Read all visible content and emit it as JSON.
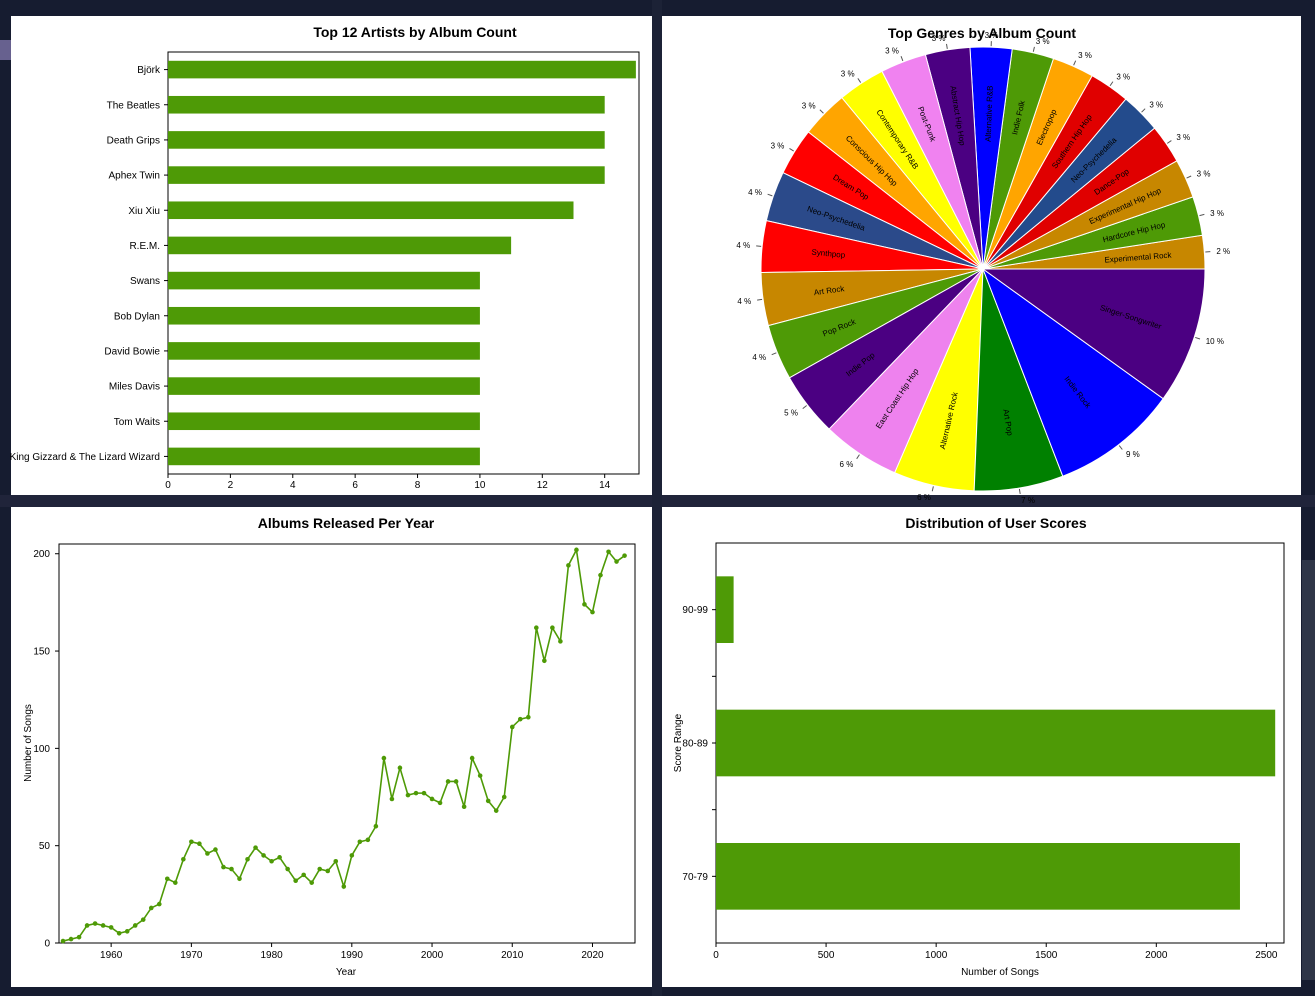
{
  "colors": {
    "bar": "#4e9a06",
    "line": "#4e9a06",
    "pie": [
      "#c78700",
      "#4e9a06",
      "#c78700",
      "#e00000",
      "#234b8c",
      "#e00000",
      "#ffa500",
      "#4e9a06",
      "#0000ff",
      "#4b0082",
      "#f082f0",
      "#ffff00",
      "#ffa500",
      "#ff0000",
      "#2b4a8a",
      "#ff0000",
      "#c78700",
      "#4e9a06",
      "#4b0082",
      "#ee82ee",
      "#ffff00",
      "#008000",
      "#0000ff",
      "#4b0082",
      "#ee82ee",
      "#4e9a06",
      "#c78700",
      "#cc0000",
      "#234b8c",
      "#ff0000"
    ]
  },
  "chart_data": [
    {
      "type": "bar",
      "orientation": "horizontal",
      "title": "Top 12 Artists by Album Count",
      "categories": [
        "Björk",
        "The Beatles",
        "Death Grips",
        "Aphex Twin",
        "Xiu Xiu",
        "R.E.M.",
        "Swans",
        "Bob Dylan",
        "David Bowie",
        "Miles Davis",
        "Tom Waits",
        "King Gizzard & The Lizard Wizard"
      ],
      "values": [
        15,
        14,
        14,
        14,
        13,
        11,
        10,
        10,
        10,
        10,
        10,
        10
      ],
      "xticks": [
        "0",
        "2",
        "4",
        "6",
        "8",
        "10",
        "12",
        "14"
      ],
      "xlim": [
        0,
        15.1
      ],
      "xlabel": "",
      "ylabel": ""
    },
    {
      "type": "pie",
      "title": "Top Genres by Album Count",
      "slices": [
        {
          "label": "Experimental Rock",
          "pct": "2 %",
          "value": 2.4
        },
        {
          "label": "Hardcore Hip Hop",
          "pct": "3 %",
          "value": 2.8
        },
        {
          "label": "Experimental Hip Hop",
          "pct": "3 %",
          "value": 2.8
        },
        {
          "label": "Dance-Pop",
          "pct": "3 %",
          "value": 2.8
        },
        {
          "label": "Neo-Psychedelia",
          "pct": "3 %",
          "value": 2.9
        },
        {
          "label": "Southern Hip Hop",
          "pct": "3 %",
          "value": 2.9
        },
        {
          "label": "Electropop",
          "pct": "3 %",
          "value": 3.0
        },
        {
          "label": "Indie Folk",
          "pct": "3 %",
          "value": 3.0
        },
        {
          "label": "Alternative R&B",
          "pct": "3 %",
          "value": 3.0
        },
        {
          "label": "Abstract Hip Hop",
          "pct": "3 %",
          "value": 3.2
        },
        {
          "label": "Post-Punk",
          "pct": "3 %",
          "value": 3.3
        },
        {
          "label": "Contemporary R&B",
          "pct": "3 %",
          "value": 3.4
        },
        {
          "label": "Conscious Hip Hop",
          "pct": "3 %",
          "value": 3.4
        },
        {
          "label": "Dream Pop",
          "pct": "3 %",
          "value": 3.4
        },
        {
          "label": "Neo-Psychedelia",
          "pct": "4 %",
          "value": 3.6
        },
        {
          "label": "Synthpop",
          "pct": "4 %",
          "value": 3.7
        },
        {
          "label": "Art Rock",
          "pct": "4 %",
          "value": 3.8
        },
        {
          "label": "Pop Rock",
          "pct": "4 %",
          "value": 4.0
        },
        {
          "label": "Indie Pop",
          "pct": "5 %",
          "value": 4.6
        },
        {
          "label": "East Coast Hip Hop",
          "pct": "6 %",
          "value": 5.6
        },
        {
          "label": "Alternative Rock",
          "pct": "6 %",
          "value": 5.8
        },
        {
          "label": "Art Pop",
          "pct": "7 %",
          "value": 6.4
        },
        {
          "label": "Indie Rock",
          "pct": "9 %",
          "value": 9.1
        },
        {
          "label": "Singer-Songwriter",
          "pct": "10 %",
          "value": 9.8
        }
      ]
    },
    {
      "type": "line",
      "title": "Albums Released Per Year",
      "xlabel": "Year",
      "ylabel": "Number of Songs",
      "x": [
        1954,
        1955,
        1956,
        1957,
        1958,
        1959,
        1960,
        1961,
        1962,
        1963,
        1964,
        1965,
        1966,
        1967,
        1968,
        1969,
        1970,
        1971,
        1972,
        1973,
        1974,
        1975,
        1976,
        1977,
        1978,
        1979,
        1980,
        1981,
        1982,
        1983,
        1984,
        1985,
        1986,
        1987,
        1988,
        1989,
        1990,
        1991,
        1992,
        1993,
        1994,
        1995,
        1996,
        1997,
        1998,
        1999,
        2000,
        2001,
        2002,
        2003,
        2004,
        2005,
        2006,
        2007,
        2008,
        2009,
        2010,
        2011,
        2012,
        2013,
        2014,
        2015,
        2016,
        2017,
        2018,
        2019,
        2020,
        2021,
        2022,
        2023,
        2024
      ],
      "y": [
        1,
        2,
        3,
        9,
        10,
        9,
        8,
        5,
        6,
        9,
        12,
        18,
        20,
        33,
        31,
        43,
        52,
        51,
        46,
        48,
        39,
        38,
        33,
        43,
        49,
        45,
        42,
        44,
        38,
        32,
        35,
        31,
        38,
        37,
        42,
        29,
        45,
        52,
        53,
        60,
        95,
        74,
        90,
        76,
        77,
        77,
        74,
        72,
        83,
        83,
        70,
        95,
        86,
        73,
        68,
        75,
        111,
        115,
        116,
        162,
        145,
        162,
        155,
        194,
        202,
        174,
        170,
        189,
        201,
        196,
        199
      ],
      "xticks": [
        "1960",
        "1970",
        "1980",
        "1990",
        "2000",
        "2010",
        "2020"
      ],
      "yticks": [
        "0",
        "50",
        "100",
        "150",
        "200"
      ],
      "xlim": [
        1953.5,
        2025.3
      ],
      "ylim": [
        0,
        205
      ]
    },
    {
      "type": "bar",
      "orientation": "horizontal",
      "title": "Distribution of User Scores",
      "xlabel": "Number of Songs",
      "ylabel": "Score Range",
      "categories": [
        "90-99",
        "80-89",
        "70-79"
      ],
      "values": [
        80,
        2540,
        2380
      ],
      "xticks": [
        "0",
        "500",
        "1000",
        "1500",
        "2000",
        "2500"
      ],
      "xlim": [
        0,
        2580
      ]
    }
  ]
}
